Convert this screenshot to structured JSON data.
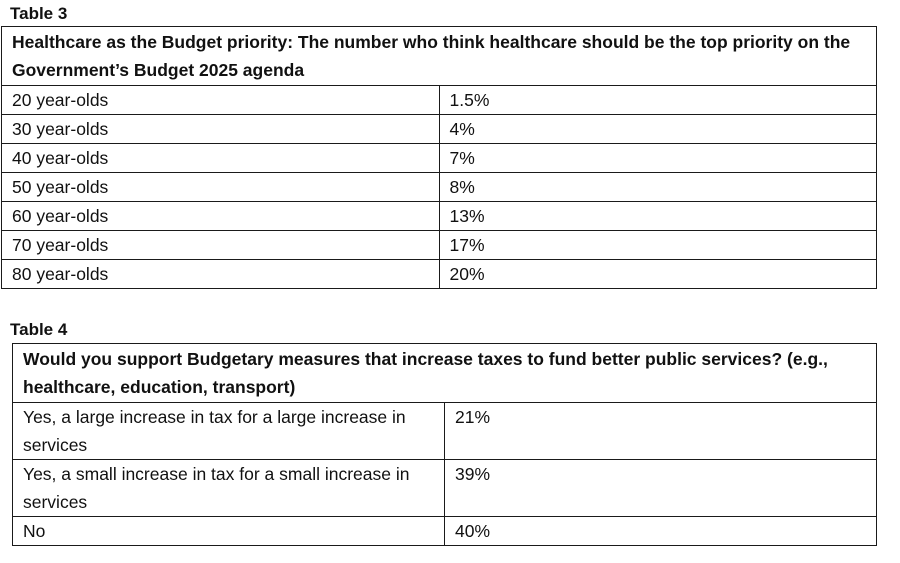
{
  "table3": {
    "caption": "Table 3",
    "title": "Healthcare as the Budget priority: The number who think healthcare should be the top priority on the Government’s Budget 2025 agenda",
    "rows": [
      {
        "label": "20 year-olds",
        "value": "1.5%"
      },
      {
        "label": "30 year-olds",
        "value": "4%"
      },
      {
        "label": "40 year-olds",
        "value": "7%"
      },
      {
        "label": "50 year-olds",
        "value": "8%"
      },
      {
        "label": "60 year-olds",
        "value": "13%"
      },
      {
        "label": "70 year-olds",
        "value": "17%"
      },
      {
        "label": "80 year-olds",
        "value": "20%"
      }
    ]
  },
  "table4": {
    "caption": "Table 4",
    "title": "Would you support Budgetary measures that increase taxes to fund better public services? (e.g., healthcare, education, transport)",
    "rows": [
      {
        "label": "Yes, a large increase in tax for a large increase in services",
        "value": "21%"
      },
      {
        "label": "Yes, a small increase in tax for a small increase in services",
        "value": "39%"
      },
      {
        "label": "No",
        "value": "40%"
      }
    ]
  }
}
